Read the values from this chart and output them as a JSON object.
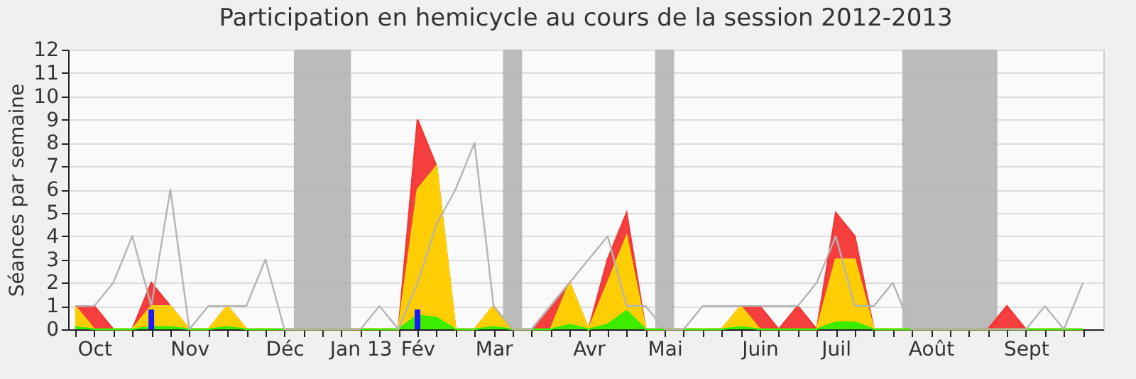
{
  "chart_data": {
    "type": "area",
    "title": "Participation en hemicycle au cours de la session 2012-2013",
    "ylabel": "Séances par semaine",
    "categories": [
      null,
      "Oct",
      null,
      null,
      null,
      null,
      "Nov",
      null,
      null,
      null,
      null,
      "Déc",
      null,
      null,
      null,
      "Jan 13",
      null,
      null,
      "Fév",
      null,
      null,
      null,
      "Mar",
      null,
      null,
      null,
      null,
      "Avr",
      null,
      null,
      null,
      "Mai",
      null,
      null,
      null,
      null,
      "Juin",
      null,
      null,
      null,
      "Juil",
      null,
      null,
      null,
      null,
      "Août",
      null,
      null,
      null,
      null,
      "Sept",
      null,
      null,
      null
    ],
    "ylim": [
      0,
      12
    ],
    "yticks": [
      0,
      1,
      2,
      3,
      4,
      5,
      6,
      7,
      8,
      9,
      10,
      11,
      12
    ],
    "grid": "y",
    "series": [
      {
        "type": "area",
        "color": "#f43535",
        "values": [
          1,
          1,
          0,
          0,
          2,
          1,
          0,
          0,
          1,
          0,
          0,
          0,
          0,
          0,
          0,
          0,
          0,
          0,
          9,
          7,
          0,
          0,
          1,
          0,
          0,
          1,
          2,
          0,
          3,
          5,
          0,
          0,
          0,
          0,
          0,
          1,
          1,
          0,
          1,
          0,
          5,
          4,
          0,
          0,
          0,
          0,
          0,
          0,
          0,
          1,
          0,
          0,
          0,
          0
        ]
      },
      {
        "type": "area",
        "color": "#ffd500",
        "values": [
          1,
          0,
          0,
          0,
          1,
          1,
          0,
          0,
          1,
          0,
          0,
          0,
          0,
          0,
          0,
          0,
          0,
          0,
          6,
          7,
          0,
          0,
          1,
          0,
          0,
          0,
          2,
          0,
          2,
          4,
          0,
          0,
          0,
          0,
          0,
          1,
          0,
          0,
          0,
          0,
          3,
          3,
          0,
          0,
          0,
          0,
          0,
          0,
          0,
          0,
          0,
          0,
          0,
          0
        ]
      },
      {
        "type": "area",
        "color": "#33ee00",
        "values": [
          0.1,
          0,
          0,
          0,
          0.1,
          0.1,
          0,
          0,
          0.1,
          0,
          0,
          0,
          0,
          0,
          0,
          0,
          0,
          0,
          0.6,
          0.5,
          0,
          0,
          0.1,
          0,
          0,
          0,
          0.2,
          0,
          0.2,
          0.8,
          0,
          0,
          0,
          0,
          0,
          0.1,
          0,
          0,
          0,
          0,
          0.3,
          0.3,
          0,
          0,
          0,
          0,
          0,
          0,
          0,
          0,
          0,
          0,
          0,
          0
        ]
      },
      {
        "type": "line",
        "color": "#b4b4b4",
        "line_style": "solid",
        "marker": "none",
        "values": [
          1,
          1,
          2,
          4,
          1,
          6,
          0,
          1,
          1,
          1,
          3,
          0,
          0,
          0,
          0,
          0,
          1,
          0,
          2,
          4.5,
          6,
          8,
          1,
          0,
          0,
          1,
          2,
          3,
          4,
          1,
          1,
          0,
          0,
          1,
          1,
          1,
          1,
          1,
          1,
          2,
          4,
          1,
          1,
          2,
          0,
          0,
          0,
          0,
          0,
          0,
          0,
          1,
          0,
          2
        ]
      },
      {
        "type": "bar",
        "color": "#1a1aff",
        "values": [
          null,
          null,
          null,
          null,
          0.85,
          null,
          null,
          null,
          null,
          null,
          null,
          null,
          null,
          null,
          null,
          null,
          null,
          null,
          0.85,
          null,
          null,
          null,
          null,
          null,
          null,
          null,
          null,
          null,
          null,
          null,
          null,
          null,
          null,
          null,
          null,
          null,
          null,
          null,
          null,
          null,
          null,
          null,
          null,
          null,
          null,
          null,
          null,
          null,
          null,
          null,
          null,
          null,
          null,
          null
        ]
      }
    ]
  }
}
